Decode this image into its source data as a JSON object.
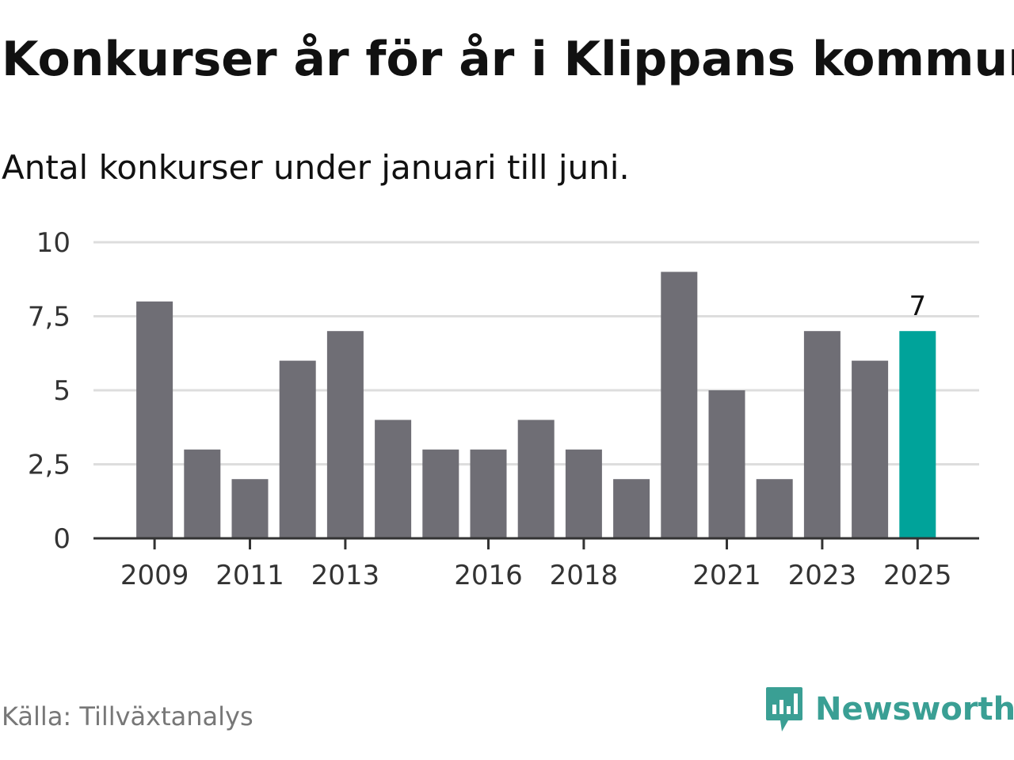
{
  "header": {
    "title": "Konkurser år för år i Klippans kommun",
    "subtitle": "Antal konkurser under januari till juni."
  },
  "footer": {
    "source": "Källa: Tillväxtanalys",
    "brand": "Newsworthy"
  },
  "colors": {
    "bar": "#6f6e75",
    "highlight": "#00a39a",
    "grid": "#dddddd",
    "axis": "#333333",
    "brand": "#3a9f94"
  },
  "chart_data": {
    "type": "bar",
    "categories": [
      "2009",
      "2010",
      "2011",
      "2012",
      "2013",
      "2014",
      "2015",
      "2016",
      "2017",
      "2018",
      "2019",
      "2020",
      "2021",
      "2022",
      "2023",
      "2024",
      "2025"
    ],
    "values": [
      8,
      3,
      2,
      6,
      7,
      4,
      3,
      3,
      4,
      3,
      2,
      9,
      5,
      2,
      7,
      6,
      7
    ],
    "x_tick_labels": [
      "2009",
      "2011",
      "2013",
      "2016",
      "2018",
      "2021",
      "2023",
      "2025"
    ],
    "y_ticks": [
      0,
      2.5,
      5,
      7.5,
      10
    ],
    "y_tick_labels": [
      "0",
      "2,5",
      "5",
      "7,5",
      "10"
    ],
    "ylim": [
      0,
      10
    ],
    "highlight_category": "2025",
    "data_labels": [
      {
        "category": "2025",
        "text": "7"
      }
    ],
    "grid": true,
    "legend": "none"
  }
}
